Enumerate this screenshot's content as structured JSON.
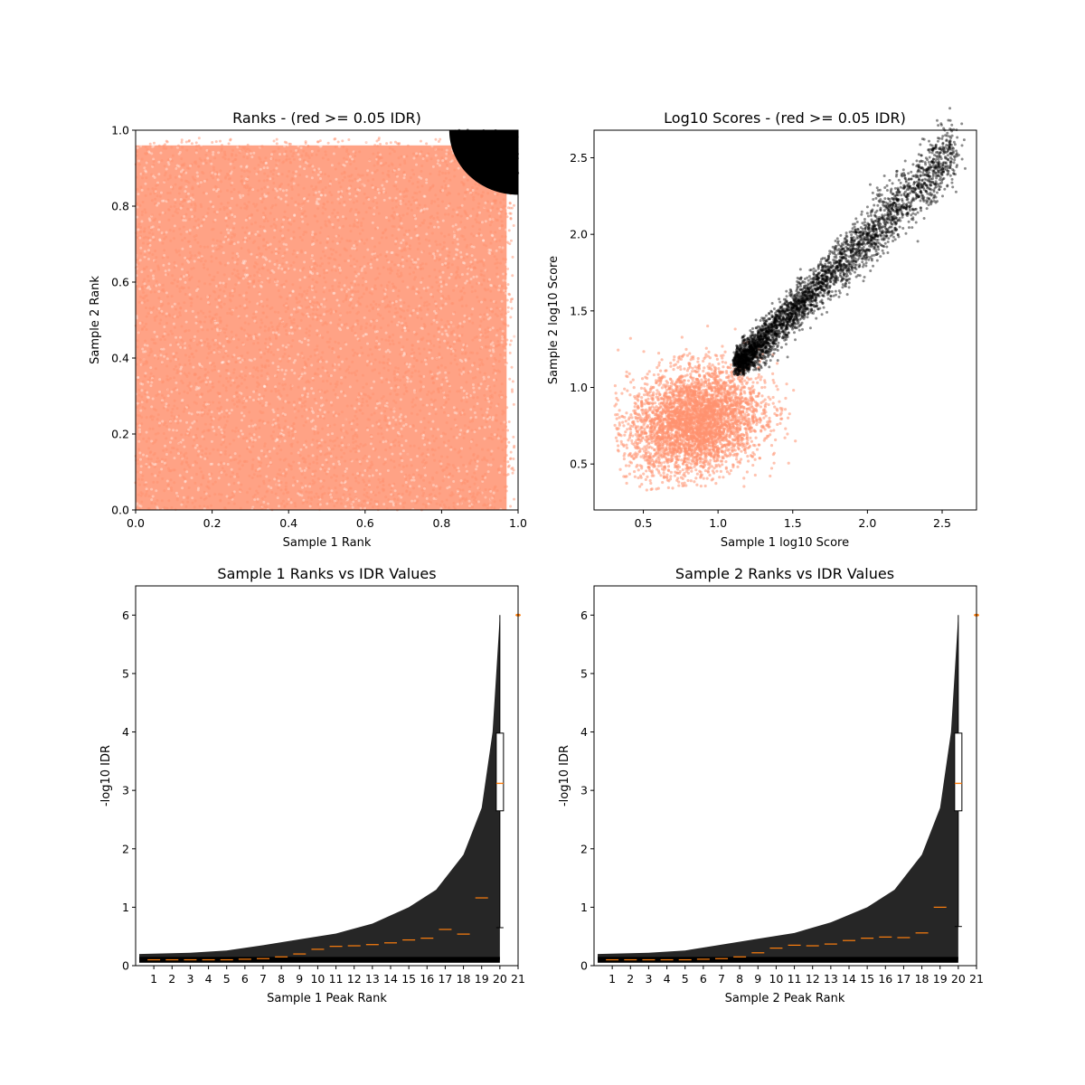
{
  "chart_data": [
    {
      "id": "ranks",
      "type": "scatter",
      "title": "Ranks - (red >= 0.05 IDR)",
      "xlabel": "Sample 1 Rank",
      "ylabel": "Sample 2 Rank",
      "xlim": [
        0,
        1
      ],
      "ylim": [
        0,
        1
      ],
      "xticks": [
        "0.0",
        "0.2",
        "0.4",
        "0.6",
        "0.8",
        "1.0"
      ],
      "yticks": [
        "0.0",
        "0.2",
        "0.4",
        "0.6",
        "0.8",
        "1.0"
      ],
      "grid": false,
      "series": [
        {
          "color": "#ff9270",
          "density_grid": {
            "x_range": [
              0,
              0.97
            ],
            "y_range": [
              0,
              0.96
            ],
            "points_approx": 5500
          }
        },
        {
          "color": "#000000",
          "region": {
            "description_points": [
              [
                0.82,
                0.9
              ],
              [
                0.86,
                0.86
              ],
              [
                0.92,
                0.84
              ],
              [
                0.98,
                0.95
              ],
              [
                1.0,
                1.0
              ]
            ],
            "points_approx": 500
          }
        }
      ]
    },
    {
      "id": "scores",
      "type": "scatter",
      "title": "Log10 Scores - (red >= 0.05 IDR)",
      "xlabel": "Sample 1 log10 Score",
      "ylabel": "Sample 2 log10 Score",
      "xlim": [
        0.17,
        2.73
      ],
      "ylim": [
        0.2,
        2.68
      ],
      "xticks": [
        "0.5",
        "1.0",
        "1.5",
        "2.0",
        "2.5"
      ],
      "yticks": [
        "0.5",
        "1.0",
        "1.5",
        "2.0",
        "2.5"
      ],
      "grid": false,
      "series": [
        {
          "color": "#ff9270",
          "blob": {
            "x_range": [
              0.3,
              1.5
            ],
            "y_range": [
              0.35,
              1.4
            ],
            "center": [
              0.85,
              0.75
            ],
            "points_approx": 4000
          }
        },
        {
          "color": "#000000",
          "ridge": {
            "start": [
              1.1,
              1.1
            ],
            "end": [
              2.6,
              2.55
            ],
            "points_approx": 3500
          }
        }
      ]
    },
    {
      "id": "s1idr",
      "type": "scatter",
      "title": "Sample 1 Ranks vs IDR Values",
      "xlabel": "Sample 1 Peak Rank",
      "ylabel": "-log10 IDR",
      "xlim": [
        0,
        21
      ],
      "ylim": [
        0,
        6.5
      ],
      "xticks": [
        "1",
        "2",
        "3",
        "4",
        "5",
        "6",
        "7",
        "8",
        "9",
        "10",
        "11",
        "12",
        "13",
        "14",
        "15",
        "16",
        "17",
        "18",
        "19",
        "20",
        "21"
      ],
      "yticks": [
        "0",
        "1",
        "2",
        "3",
        "4",
        "5",
        "6"
      ],
      "grid": false,
      "band_upper": [
        [
          0.2,
          0.2
        ],
        [
          3,
          0.22
        ],
        [
          5,
          0.26
        ],
        [
          7,
          0.35
        ],
        [
          9,
          0.45
        ],
        [
          11,
          0.55
        ],
        [
          13,
          0.72
        ],
        [
          15,
          1.0
        ],
        [
          16.5,
          1.3
        ],
        [
          18,
          1.9
        ],
        [
          19,
          2.7
        ],
        [
          19.6,
          4.0
        ],
        [
          20,
          6.0
        ]
      ],
      "band_lower": [
        [
          0.2,
          0.1
        ],
        [
          20,
          0.1
        ]
      ],
      "medians": [
        0.1,
        0.1,
        0.1,
        0.1,
        0.1,
        0.11,
        0.12,
        0.15,
        0.2,
        0.28,
        0.33,
        0.34,
        0.36,
        0.39,
        0.44,
        0.47,
        0.62,
        0.54,
        1.16
      ],
      "box": {
        "q1": 2.65,
        "median": 3.12,
        "q3": 3.98,
        "whisker_low": 0.65,
        "whisker_high": 6.0,
        "outlier": 6.0
      }
    },
    {
      "id": "s2idr",
      "type": "scatter",
      "title": "Sample 2 Ranks vs IDR Values",
      "xlabel": "Sample 2 Peak Rank",
      "ylabel": "-log10 IDR",
      "xlim": [
        0,
        21
      ],
      "ylim": [
        0,
        6.5
      ],
      "xticks": [
        "1",
        "2",
        "3",
        "4",
        "5",
        "6",
        "7",
        "8",
        "9",
        "10",
        "11",
        "12",
        "13",
        "14",
        "15",
        "16",
        "17",
        "18",
        "19",
        "20",
        "21"
      ],
      "yticks": [
        "0",
        "1",
        "2",
        "3",
        "4",
        "5",
        "6"
      ],
      "grid": false,
      "band_upper": [
        [
          0.2,
          0.2
        ],
        [
          3,
          0.22
        ],
        [
          5,
          0.26
        ],
        [
          7,
          0.36
        ],
        [
          9,
          0.46
        ],
        [
          11,
          0.56
        ],
        [
          13,
          0.74
        ],
        [
          15,
          1.0
        ],
        [
          16.5,
          1.3
        ],
        [
          18,
          1.9
        ],
        [
          19,
          2.7
        ],
        [
          19.6,
          4.0
        ],
        [
          20,
          6.0
        ]
      ],
      "band_lower": [
        [
          0.2,
          0.1
        ],
        [
          20,
          0.1
        ]
      ],
      "medians": [
        0.1,
        0.1,
        0.1,
        0.1,
        0.1,
        0.11,
        0.12,
        0.15,
        0.22,
        0.3,
        0.35,
        0.34,
        0.37,
        0.43,
        0.47,
        0.49,
        0.48,
        0.56,
        1.0
      ],
      "box": {
        "q1": 2.65,
        "median": 3.12,
        "q3": 3.98,
        "whisker_low": 0.67,
        "whisker_high": 6.0,
        "outlier": 6.0
      }
    }
  ]
}
